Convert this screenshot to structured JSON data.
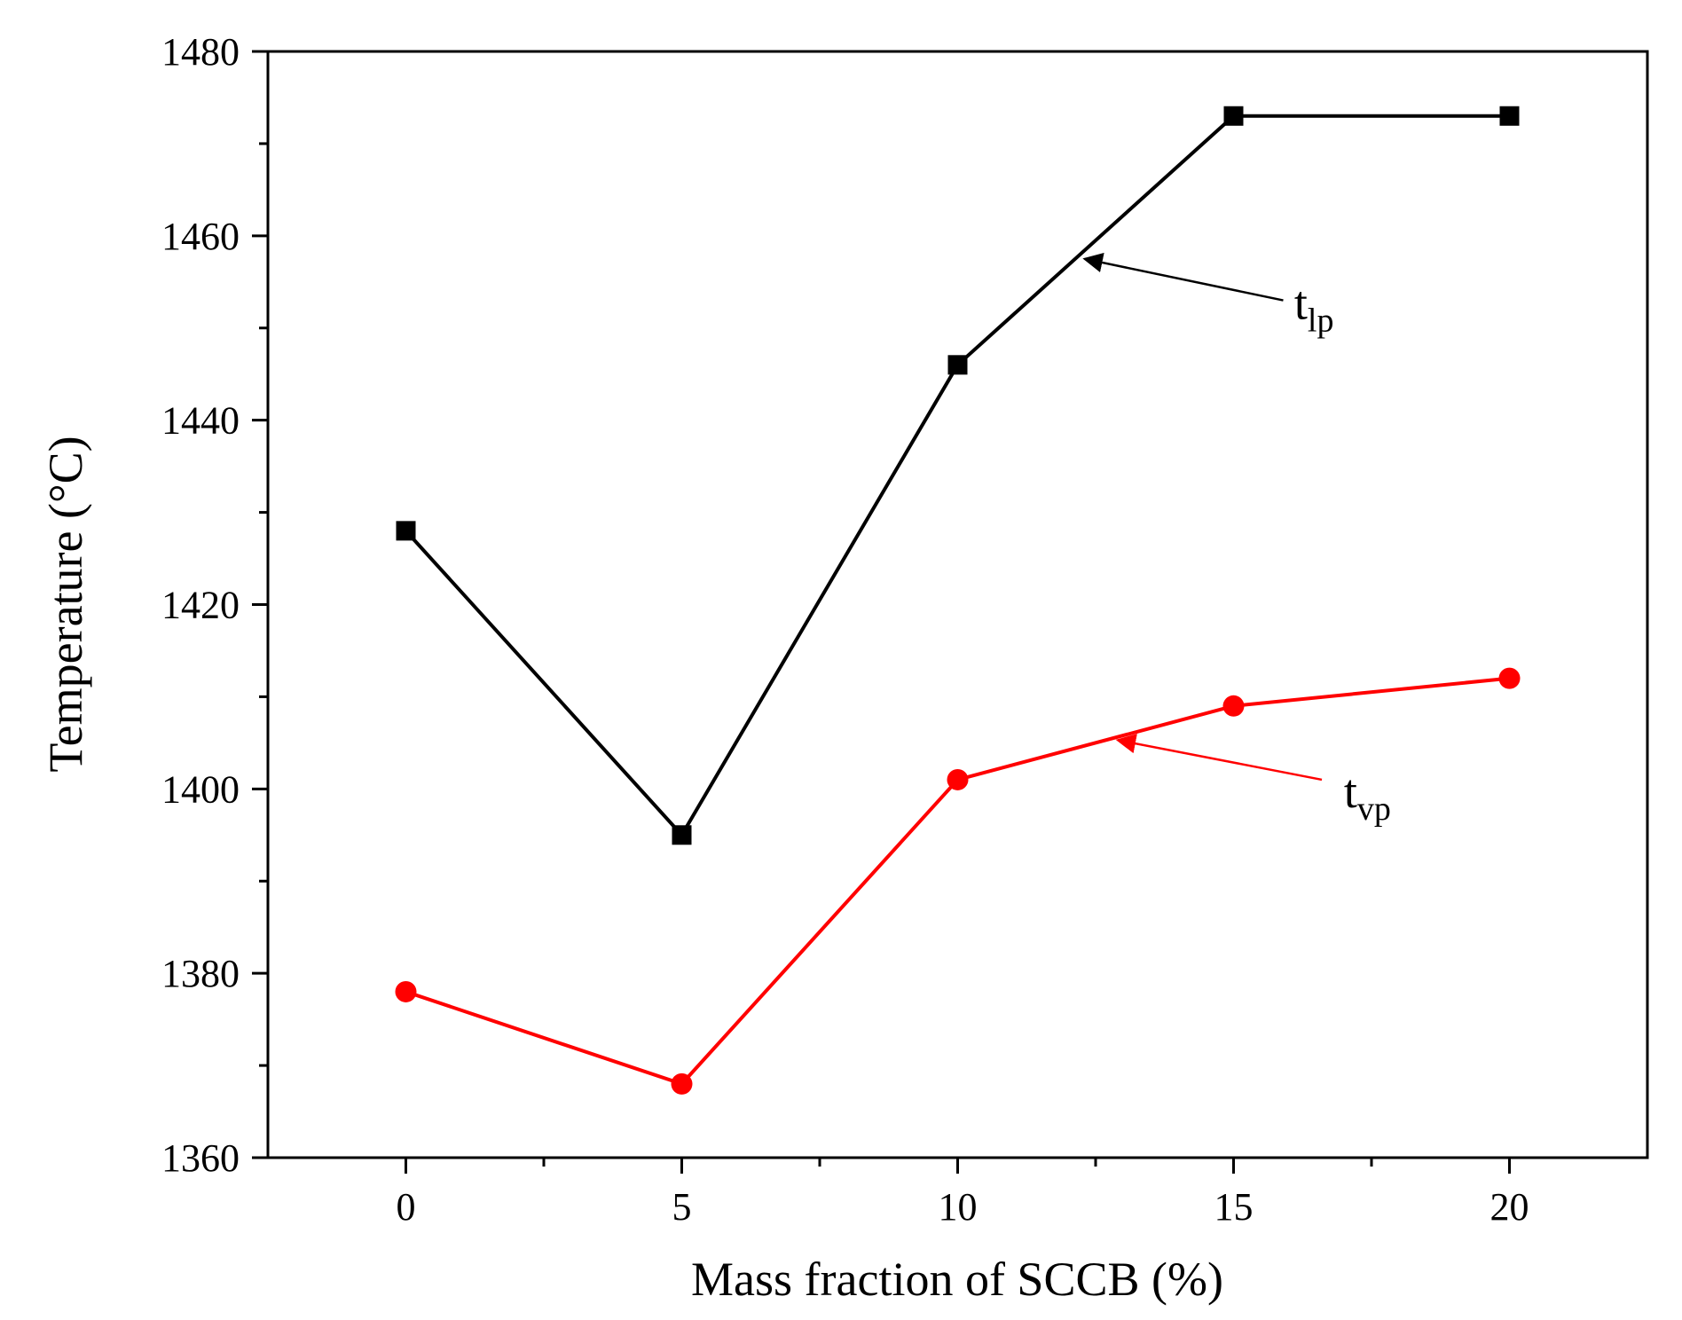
{
  "chart_data": {
    "type": "line",
    "title": "",
    "xlabel": "Mass fraction of SCCB (%)",
    "ylabel": "Temperature (°C)",
    "x": [
      0,
      5,
      10,
      15,
      20
    ],
    "xlim": [
      -2.5,
      22.5
    ],
    "ylim": [
      1360,
      1480
    ],
    "xticks": [
      0,
      5,
      10,
      15,
      20
    ],
    "xtick_labels": [
      "0",
      "5",
      "10",
      "15",
      "20"
    ],
    "xminor": [
      2.5,
      7.5,
      12.5,
      17.5
    ],
    "yticks": [
      1360,
      1380,
      1400,
      1420,
      1440,
      1460,
      1480
    ],
    "ytick_labels": [
      "1360",
      "1380",
      "1400",
      "1420",
      "1440",
      "1460",
      "1480"
    ],
    "yminor": [
      1370,
      1390,
      1410,
      1430,
      1450,
      1470
    ],
    "grid": false,
    "series": [
      {
        "name": "tlp",
        "label_main": "t",
        "label_sub": "lp",
        "color": "#000000",
        "marker": "square",
        "values": [
          1428,
          1395,
          1446,
          1473,
          1473
        ],
        "annotation": {
          "text_x": 16.1,
          "text_y": 1451,
          "arrow_from": [
            15.9,
            1453
          ],
          "arrow_to": [
            12.3,
            1457.5
          ]
        }
      },
      {
        "name": "tvp",
        "label_main": "t",
        "label_sub": "vp",
        "color": "#ff0000",
        "marker": "circle",
        "values": [
          1378,
          1368,
          1401,
          1409,
          1412
        ],
        "annotation": {
          "text_x": 17.0,
          "text_y": 1398,
          "arrow_from": [
            16.6,
            1401
          ],
          "arrow_to": [
            12.9,
            1405.3
          ]
        }
      }
    ]
  }
}
